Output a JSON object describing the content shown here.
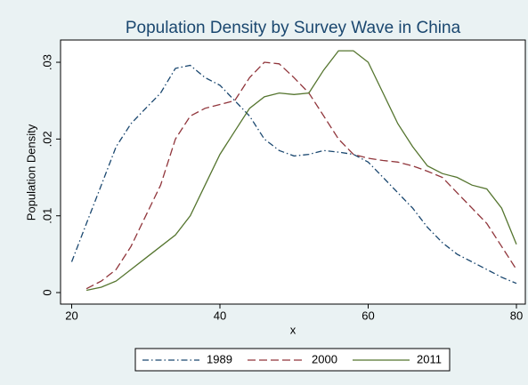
{
  "chart_data": {
    "type": "line",
    "title": "Population Density by Survey Wave in China",
    "x_label": "x",
    "y_label": "Population Density",
    "x": [
      20,
      22,
      24,
      26,
      28,
      30,
      32,
      34,
      36,
      38,
      40,
      42,
      44,
      46,
      48,
      50,
      52,
      54,
      56,
      58,
      60,
      62,
      64,
      66,
      68,
      70,
      72,
      74,
      76,
      78,
      80
    ],
    "series": [
      {
        "name": "1989",
        "color": "#1a476f",
        "dash": "7,3,1.5,3",
        "values": [
          0.004,
          0.009,
          0.014,
          0.019,
          0.022,
          0.024,
          0.026,
          0.0292,
          0.0296,
          0.028,
          0.027,
          0.025,
          0.023,
          0.02,
          0.0185,
          0.0178,
          0.018,
          0.0185,
          0.0183,
          0.018,
          0.017,
          0.015,
          0.013,
          0.011,
          0.0085,
          0.0065,
          0.005,
          0.004,
          0.003,
          0.002,
          0.0012
        ]
      },
      {
        "name": "2000",
        "color": "#90353b",
        "dash": "9,4",
        "values": [
          null,
          0.0005,
          0.0015,
          0.003,
          0.006,
          0.01,
          0.014,
          0.02,
          0.023,
          0.024,
          0.0245,
          0.025,
          0.028,
          0.03,
          0.0298,
          0.028,
          0.026,
          0.023,
          0.02,
          0.018,
          0.0175,
          0.0172,
          0.017,
          0.0165,
          0.0158,
          0.015,
          0.013,
          0.011,
          0.009,
          0.006,
          0.003
        ]
      },
      {
        "name": "2011",
        "color": "#55752f",
        "dash": "none",
        "values": [
          null,
          0.0003,
          0.0007,
          0.0015,
          0.003,
          0.0045,
          0.006,
          0.0075,
          0.01,
          0.014,
          0.018,
          0.021,
          0.024,
          0.0255,
          0.026,
          0.0258,
          0.026,
          0.029,
          0.0315,
          0.0315,
          0.03,
          0.026,
          0.022,
          0.019,
          0.0165,
          0.0155,
          0.015,
          0.014,
          0.0135,
          0.011,
          0.0063
        ]
      }
    ],
    "xlim": [
      18.5,
      81.2
    ],
    "ylim": [
      -0.0015,
      0.0329
    ],
    "xticks": [
      20,
      40,
      60,
      80
    ],
    "yticks": [
      0,
      {
        "value": 0.01,
        "label": ".01"
      },
      {
        "value": 0.02,
        "label": ".02"
      },
      {
        "value": 0.03,
        "label": ".03"
      }
    ],
    "grid": false,
    "legend": "bottom"
  }
}
